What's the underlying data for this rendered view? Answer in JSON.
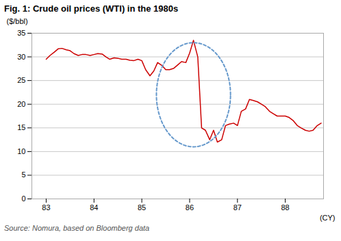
{
  "chart_data": {
    "type": "line",
    "title": "Fig. 1: Crude oil prices (WTI) in the 1980s",
    "ylabel": "($/bbl)",
    "xlabel": "(CY)",
    "source": "Source: Nomura, based on Bloomberg data",
    "color": "#cc0000",
    "grid": "y",
    "xlim": [
      82.7,
      88.8
    ],
    "ylim": [
      0,
      35
    ],
    "xticks": [
      83,
      84,
      85,
      86,
      87,
      88
    ],
    "yticks": [
      0,
      5,
      10,
      15,
      20,
      25,
      30,
      35
    ],
    "x": [
      83.0,
      83.08,
      83.17,
      83.25,
      83.33,
      83.42,
      83.5,
      83.58,
      83.67,
      83.75,
      83.83,
      83.92,
      84.0,
      84.08,
      84.17,
      84.25,
      84.33,
      84.42,
      84.5,
      84.58,
      84.67,
      84.75,
      84.83,
      84.92,
      85.0,
      85.08,
      85.17,
      85.25,
      85.33,
      85.42,
      85.5,
      85.58,
      85.67,
      85.75,
      85.83,
      85.92,
      86.0,
      86.08,
      86.17,
      86.25,
      86.33,
      86.42,
      86.5,
      86.58,
      86.67,
      86.75,
      86.83,
      86.92,
      87.0,
      87.08,
      87.17,
      87.25,
      87.33,
      87.42,
      87.5,
      87.58,
      87.67,
      87.75,
      87.83,
      87.92,
      88.0,
      88.08,
      88.17,
      88.25,
      88.33,
      88.42,
      88.5,
      88.58,
      88.67,
      88.75
    ],
    "values": [
      29.5,
      30.3,
      31.0,
      31.7,
      31.8,
      31.5,
      31.3,
      30.7,
      30.3,
      30.5,
      30.5,
      30.3,
      30.5,
      30.7,
      30.6,
      30.0,
      29.5,
      29.8,
      29.7,
      29.5,
      29.5,
      29.3,
      29.2,
      29.5,
      29.2,
      27.3,
      26.0,
      27.0,
      28.8,
      28.2,
      27.3,
      27.3,
      27.6,
      28.3,
      29.0,
      28.8,
      30.8,
      33.5,
      30.0,
      15.0,
      14.5,
      12.5,
      14.5,
      12.0,
      12.5,
      15.5,
      15.8,
      16.0,
      15.5,
      18.5,
      19.0,
      21.0,
      20.8,
      20.5,
      20.0,
      19.5,
      18.5,
      18.0,
      17.5,
      17.5,
      17.5,
      17.2,
      16.5,
      15.5,
      15.0,
      14.5,
      14.3,
      14.5,
      15.5,
      16.0
    ],
    "ellipse": {
      "x": 86.08,
      "y": 22.0,
      "width": 1.55,
      "height": 22.0,
      "color": "#6699cc"
    }
  }
}
